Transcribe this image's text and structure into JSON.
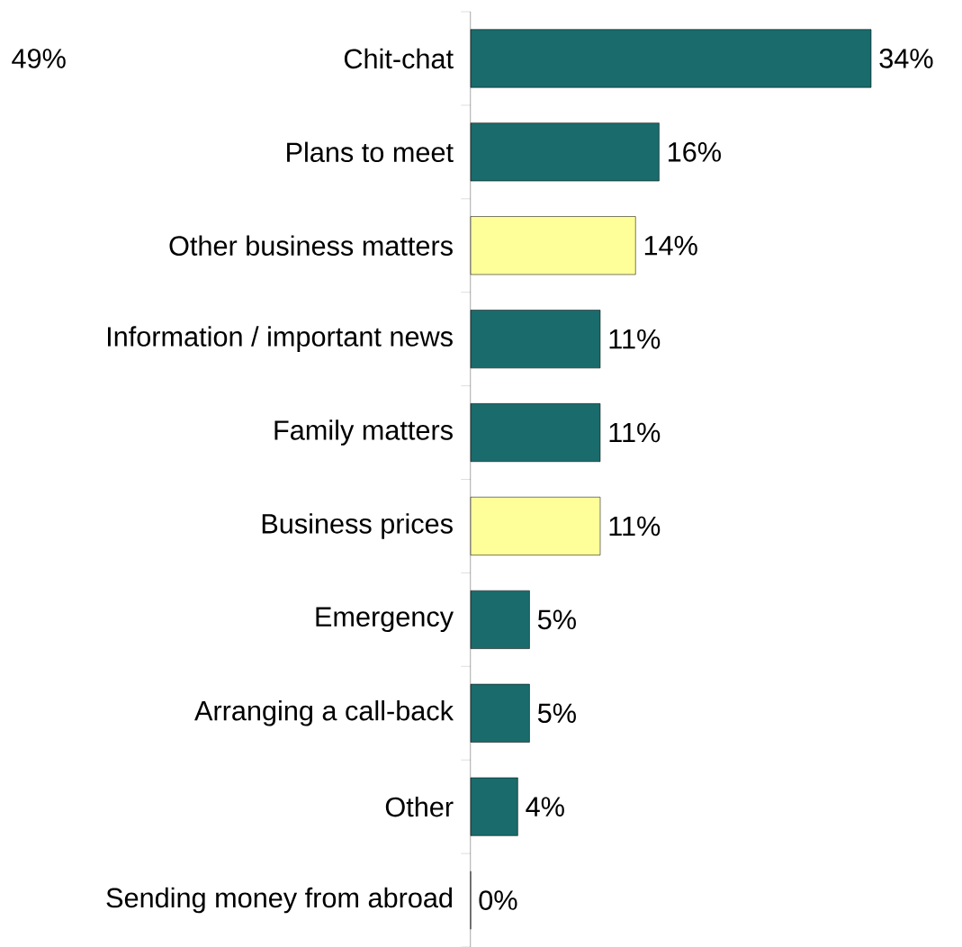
{
  "chart_data": {
    "type": "bar",
    "orientation": "horizontal",
    "categories": [
      "Chit-chat",
      "Plans to meet",
      "Other business matters",
      "Information / important news",
      "Family matters",
      "Business prices",
      "Emergency",
      "Arranging a call-back",
      "Other",
      "Sending money from abroad"
    ],
    "values": [
      34,
      16,
      14,
      11,
      11,
      11,
      5,
      5,
      4,
      0
    ],
    "value_labels": [
      "34%",
      "16%",
      "14%",
      "11%",
      "11%",
      "11%",
      "5%",
      "5%",
      "4%",
      "0%"
    ],
    "colors": [
      "#1a6b6b",
      "#1a6b6b",
      "#ffff99",
      "#1a6b6b",
      "#1a6b6b",
      "#ffff99",
      "#1a6b6b",
      "#1a6b6b",
      "#1a6b6b",
      "#1a6b6b"
    ],
    "annotations": [
      "49%"
    ]
  }
}
